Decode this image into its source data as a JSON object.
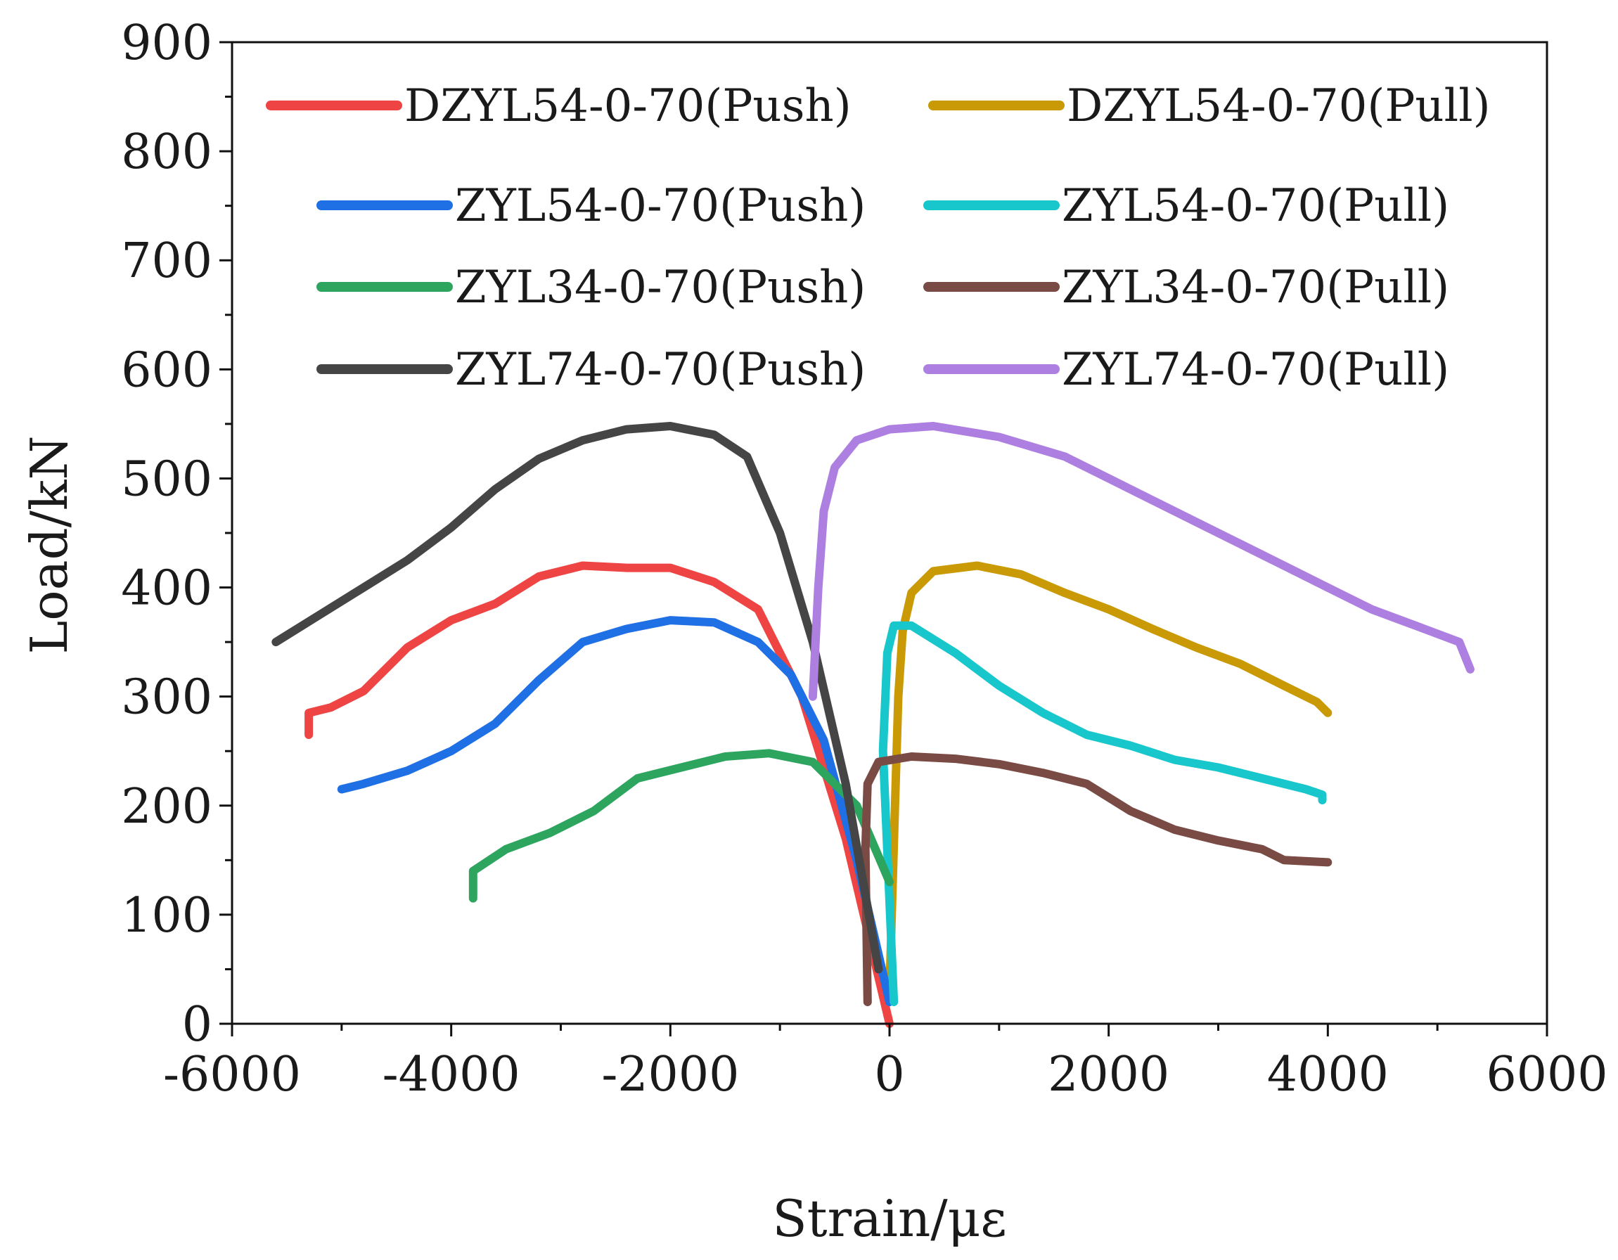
{
  "chart_data": {
    "type": "line",
    "title": "",
    "xlabel": "Strain/με",
    "ylabel": "Load/kN",
    "xlim": [
      -6000,
      6000
    ],
    "ylim": [
      0,
      900
    ],
    "x_ticks": [
      -6000,
      -4000,
      -2000,
      0,
      2000,
      4000,
      6000
    ],
    "y_ticks": [
      0,
      100,
      200,
      300,
      400,
      500,
      600,
      700,
      800,
      900
    ],
    "x_tick_labels": [
      "-6000",
      "-4000",
      "-2000",
      "0",
      "2000",
      "4000",
      "6000"
    ],
    "y_tick_labels": [
      "0",
      "100",
      "200",
      "300",
      "400",
      "500",
      "600",
      "700",
      "800",
      "900"
    ],
    "grid": false,
    "legend_position": "top",
    "series": [
      {
        "name": "DZYL54-0-70(Push)",
        "color": "#ef4444",
        "points": [
          [
            0,
            0
          ],
          [
            -400,
            170
          ],
          [
            -800,
            300
          ],
          [
            -1200,
            380
          ],
          [
            -1600,
            405
          ],
          [
            -2000,
            418
          ],
          [
            -2400,
            418
          ],
          [
            -2800,
            420
          ],
          [
            -3200,
            410
          ],
          [
            -3600,
            385
          ],
          [
            -4000,
            370
          ],
          [
            -4400,
            345
          ],
          [
            -4800,
            305
          ],
          [
            -5100,
            290
          ],
          [
            -5300,
            285
          ],
          [
            -5300,
            265
          ]
        ]
      },
      {
        "name": "DZYL54-0-70(Pull)",
        "color": "#c99a06",
        "points": [
          [
            0,
            30
          ],
          [
            50,
            200
          ],
          [
            80,
            300
          ],
          [
            120,
            360
          ],
          [
            200,
            395
          ],
          [
            400,
            415
          ],
          [
            800,
            420
          ],
          [
            1200,
            412
          ],
          [
            1600,
            395
          ],
          [
            2000,
            380
          ],
          [
            2400,
            362
          ],
          [
            2800,
            345
          ],
          [
            3200,
            330
          ],
          [
            3600,
            310
          ],
          [
            3900,
            295
          ],
          [
            4000,
            285
          ]
        ]
      },
      {
        "name": "ZYL54-0-70(Push)",
        "color": "#1f6fe5",
        "points": [
          [
            0,
            20
          ],
          [
            -300,
            150
          ],
          [
            -600,
            260
          ],
          [
            -900,
            320
          ],
          [
            -1200,
            350
          ],
          [
            -1600,
            368
          ],
          [
            -2000,
            370
          ],
          [
            -2400,
            362
          ],
          [
            -2800,
            350
          ],
          [
            -3200,
            315
          ],
          [
            -3600,
            275
          ],
          [
            -4000,
            250
          ],
          [
            -4400,
            232
          ],
          [
            -4800,
            220
          ],
          [
            -5000,
            215
          ]
        ]
      },
      {
        "name": "ZYL54-0-70(Pull)",
        "color": "#17c7cc",
        "points": [
          [
            40,
            20
          ],
          [
            -60,
            250
          ],
          [
            -20,
            340
          ],
          [
            40,
            365
          ],
          [
            200,
            365
          ],
          [
            600,
            340
          ],
          [
            1000,
            310
          ],
          [
            1400,
            285
          ],
          [
            1800,
            265
          ],
          [
            2200,
            255
          ],
          [
            2600,
            242
          ],
          [
            3000,
            235
          ],
          [
            3400,
            225
          ],
          [
            3800,
            215
          ],
          [
            3950,
            210
          ],
          [
            3950,
            205
          ]
        ]
      },
      {
        "name": "ZYL34-0-70(Push)",
        "color": "#2ea55f",
        "points": [
          [
            0,
            130
          ],
          [
            -300,
            200
          ],
          [
            -700,
            240
          ],
          [
            -1100,
            248
          ],
          [
            -1500,
            245
          ],
          [
            -1900,
            235
          ],
          [
            -2300,
            225
          ],
          [
            -2700,
            195
          ],
          [
            -3100,
            175
          ],
          [
            -3500,
            160
          ],
          [
            -3800,
            140
          ],
          [
            -3800,
            115
          ]
        ]
      },
      {
        "name": "ZYL34-0-70(Pull)",
        "color": "#7a4a44",
        "points": [
          [
            -200,
            20
          ],
          [
            -220,
            160
          ],
          [
            -200,
            220
          ],
          [
            -100,
            240
          ],
          [
            200,
            245
          ],
          [
            600,
            243
          ],
          [
            1000,
            238
          ],
          [
            1400,
            230
          ],
          [
            1800,
            220
          ],
          [
            2200,
            195
          ],
          [
            2600,
            178
          ],
          [
            3000,
            168
          ],
          [
            3400,
            160
          ],
          [
            3600,
            150
          ],
          [
            4000,
            148
          ]
        ]
      },
      {
        "name": "ZYL74-0-70(Push)",
        "color": "#454545",
        "points": [
          [
            -100,
            50
          ],
          [
            -400,
            220
          ],
          [
            -700,
            350
          ],
          [
            -1000,
            450
          ],
          [
            -1300,
            520
          ],
          [
            -1600,
            540
          ],
          [
            -2000,
            548
          ],
          [
            -2400,
            545
          ],
          [
            -2800,
            535
          ],
          [
            -3200,
            518
          ],
          [
            -3600,
            490
          ],
          [
            -4000,
            455
          ],
          [
            -4400,
            425
          ],
          [
            -4800,
            400
          ],
          [
            -5200,
            375
          ],
          [
            -5600,
            350
          ]
        ]
      },
      {
        "name": "ZYL74-0-70(Pull)",
        "color": "#ad7fe0",
        "points": [
          [
            -700,
            300
          ],
          [
            -650,
            400
          ],
          [
            -600,
            470
          ],
          [
            -500,
            510
          ],
          [
            -300,
            535
          ],
          [
            0,
            545
          ],
          [
            400,
            548
          ],
          [
            1000,
            538
          ],
          [
            1600,
            520
          ],
          [
            2000,
            500
          ],
          [
            2400,
            480
          ],
          [
            2800,
            460
          ],
          [
            3200,
            440
          ],
          [
            3600,
            420
          ],
          [
            4000,
            400
          ],
          [
            4400,
            380
          ],
          [
            4800,
            365
          ],
          [
            5200,
            350
          ],
          [
            5300,
            325
          ]
        ]
      }
    ]
  }
}
